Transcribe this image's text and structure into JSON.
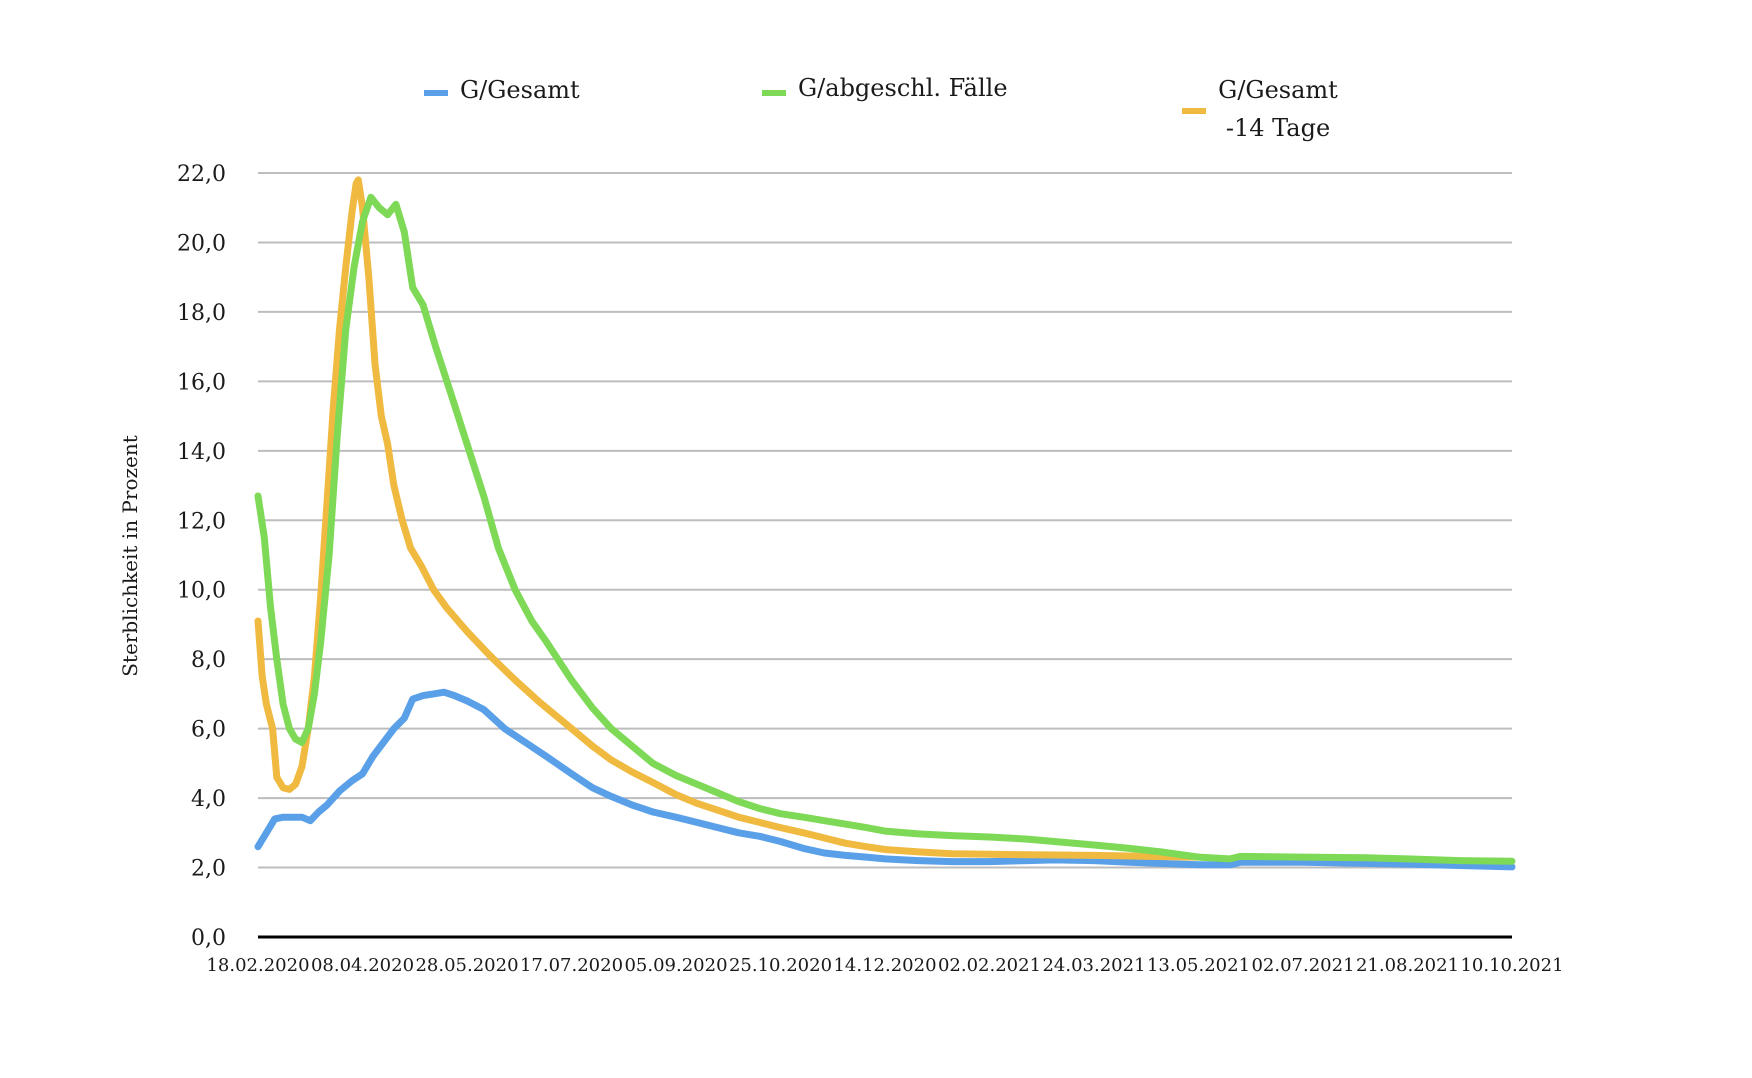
{
  "chart_data": {
    "type": "line",
    "title": "",
    "xlabel": "",
    "ylabel": "Sterblichkeit in Prozent",
    "ylim": [
      0,
      22
    ],
    "yticks": [
      "0,0",
      "2,0",
      "4,0",
      "6,0",
      "8,0",
      "10,0",
      "12,0",
      "14,0",
      "16,0",
      "18,0",
      "20,0",
      "22,0"
    ],
    "ytick_values": [
      0,
      2,
      4,
      6,
      8,
      10,
      12,
      14,
      16,
      18,
      20,
      22
    ],
    "xlim": [
      "18.02.2020",
      "10.10.2021"
    ],
    "xticks": [
      "18.02.2020",
      "08.04.2020",
      "28.05.2020",
      "17.07.2020",
      "05.09.2020",
      "25.10.2020",
      "14.12.2020",
      "02.02.2021",
      "24.03.2021",
      "13.05.2021",
      "02.07.2021",
      "21.08.2021",
      "10.10.2021"
    ],
    "grid": true,
    "legend_position": "top",
    "series": [
      {
        "name": "G/Gesamt",
        "color": "#5aa0e8",
        "points": [
          [
            "18.02.2020",
            2.6
          ],
          [
            "22.02.2020",
            3.0
          ],
          [
            "26.02.2020",
            3.4
          ],
          [
            "01.03.2020",
            3.45
          ],
          [
            "10.03.2020",
            3.45
          ],
          [
            "14.03.2020",
            3.35
          ],
          [
            "18.03.2020",
            3.6
          ],
          [
            "22.03.2020",
            3.8
          ],
          [
            "28.03.2020",
            4.2
          ],
          [
            "03.04.2020",
            4.5
          ],
          [
            "08.04.2020",
            4.7
          ],
          [
            "13.04.2020",
            5.2
          ],
          [
            "18.04.2020",
            5.6
          ],
          [
            "23.04.2020",
            6.0
          ],
          [
            "28.04.2020",
            6.3
          ],
          [
            "02.05.2020",
            6.85
          ],
          [
            "07.05.2020",
            6.95
          ],
          [
            "12.05.2020",
            7.0
          ],
          [
            "17.05.2020",
            7.05
          ],
          [
            "22.05.2020",
            6.95
          ],
          [
            "28.05.2020",
            6.8
          ],
          [
            "05.06.2020",
            6.55
          ],
          [
            "15.06.2020",
            6.0
          ],
          [
            "25.06.2020",
            5.6
          ],
          [
            "05.07.2020",
            5.2
          ],
          [
            "17.07.2020",
            4.7
          ],
          [
            "27.07.2020",
            4.3
          ],
          [
            "05.08.2020",
            4.05
          ],
          [
            "15.08.2020",
            3.8
          ],
          [
            "25.08.2020",
            3.6
          ],
          [
            "05.09.2020",
            3.45
          ],
          [
            "15.09.2020",
            3.3
          ],
          [
            "25.09.2020",
            3.15
          ],
          [
            "05.10.2020",
            3.0
          ],
          [
            "15.10.2020",
            2.9
          ],
          [
            "25.10.2020",
            2.75
          ],
          [
            "05.11.2020",
            2.55
          ],
          [
            "15.11.2020",
            2.42
          ],
          [
            "25.11.2020",
            2.35
          ],
          [
            "05.12.2020",
            2.3
          ],
          [
            "14.12.2020",
            2.25
          ],
          [
            "30.12.2020",
            2.2
          ],
          [
            "15.01.2021",
            2.17
          ],
          [
            "02.02.2021",
            2.17
          ],
          [
            "20.02.2021",
            2.2
          ],
          [
            "05.03.2021",
            2.22
          ],
          [
            "24.03.2021",
            2.2
          ],
          [
            "10.04.2021",
            2.15
          ],
          [
            "25.04.2021",
            2.12
          ],
          [
            "13.05.2021",
            2.08
          ],
          [
            "28.05.2021",
            2.08
          ],
          [
            "02.06.2021",
            2.15
          ],
          [
            "02.07.2021",
            2.15
          ],
          [
            "01.08.2021",
            2.12
          ],
          [
            "21.08.2021",
            2.1
          ],
          [
            "15.09.2021",
            2.06
          ],
          [
            "10.10.2021",
            2.02
          ]
        ]
      },
      {
        "name": "G/abgeschl. Fälle",
        "color": "#7ed957",
        "points": [
          [
            "18.02.2020",
            12.7
          ],
          [
            "21.02.2020",
            11.5
          ],
          [
            "24.02.2020",
            9.5
          ],
          [
            "27.02.2020",
            8.0
          ],
          [
            "01.03.2020",
            6.7
          ],
          [
            "04.03.2020",
            6.0
          ],
          [
            "07.03.2020",
            5.7
          ],
          [
            "10.03.2020",
            5.6
          ],
          [
            "13.03.2020",
            6.0
          ],
          [
            "16.03.2020",
            7.0
          ],
          [
            "19.03.2020",
            8.5
          ],
          [
            "23.03.2020",
            11.0
          ],
          [
            "27.03.2020",
            14.5
          ],
          [
            "31.03.2020",
            17.5
          ],
          [
            "04.04.2020",
            19.3
          ],
          [
            "08.04.2020",
            20.6
          ],
          [
            "12.04.2020",
            21.3
          ],
          [
            "16.04.2020",
            21.0
          ],
          [
            "20.04.2020",
            20.8
          ],
          [
            "24.04.2020",
            21.1
          ],
          [
            "28.04.2020",
            20.3
          ],
          [
            "02.05.2020",
            18.7
          ],
          [
            "07.05.2020",
            18.2
          ],
          [
            "13.05.2020",
            17.0
          ],
          [
            "20.05.2020",
            15.7
          ],
          [
            "28.05.2020",
            14.2
          ],
          [
            "05.06.2020",
            12.7
          ],
          [
            "12.06.2020",
            11.2
          ],
          [
            "20.06.2020",
            10.0
          ],
          [
            "28.06.2020",
            9.1
          ],
          [
            "05.07.2020",
            8.5
          ],
          [
            "17.07.2020",
            7.4
          ],
          [
            "27.07.2020",
            6.6
          ],
          [
            "05.08.2020",
            6.0
          ],
          [
            "15.08.2020",
            5.5
          ],
          [
            "25.08.2020",
            5.0
          ],
          [
            "05.09.2020",
            4.65
          ],
          [
            "15.09.2020",
            4.4
          ],
          [
            "25.09.2020",
            4.15
          ],
          [
            "05.10.2020",
            3.9
          ],
          [
            "15.10.2020",
            3.7
          ],
          [
            "25.10.2020",
            3.55
          ],
          [
            "05.11.2020",
            3.45
          ],
          [
            "15.11.2020",
            3.35
          ],
          [
            "25.11.2020",
            3.25
          ],
          [
            "05.12.2020",
            3.15
          ],
          [
            "14.12.2020",
            3.05
          ],
          [
            "30.12.2020",
            2.97
          ],
          [
            "15.01.2021",
            2.92
          ],
          [
            "02.02.2021",
            2.88
          ],
          [
            "20.02.2021",
            2.82
          ],
          [
            "05.03.2021",
            2.75
          ],
          [
            "24.03.2021",
            2.65
          ],
          [
            "10.04.2021",
            2.55
          ],
          [
            "25.04.2021",
            2.45
          ],
          [
            "13.05.2021",
            2.3
          ],
          [
            "28.05.2021",
            2.25
          ],
          [
            "02.06.2021",
            2.32
          ],
          [
            "02.07.2021",
            2.3
          ],
          [
            "01.08.2021",
            2.28
          ],
          [
            "21.08.2021",
            2.25
          ],
          [
            "15.09.2021",
            2.2
          ],
          [
            "10.10.2021",
            2.18
          ]
        ]
      },
      {
        "name": "G/Gesamt\n-14 Tage",
        "name_lines": [
          "G/Gesamt",
          "-14 Tage"
        ],
        "color": "#f0b940",
        "points": [
          [
            "18.02.2020",
            9.1
          ],
          [
            "20.02.2020",
            7.5
          ],
          [
            "22.02.2020",
            6.7
          ],
          [
            "25.02.2020",
            6.0
          ],
          [
            "27.02.2020",
            4.6
          ],
          [
            "01.03.2020",
            4.3
          ],
          [
            "04.03.2020",
            4.25
          ],
          [
            "07.03.2020",
            4.4
          ],
          [
            "10.03.2020",
            4.9
          ],
          [
            "13.03.2020",
            6.0
          ],
          [
            "16.03.2020",
            7.5
          ],
          [
            "19.03.2020",
            9.8
          ],
          [
            "22.03.2020",
            12.5
          ],
          [
            "25.03.2020",
            15.2
          ],
          [
            "28.03.2020",
            17.5
          ],
          [
            "31.03.2020",
            19.3
          ],
          [
            "03.04.2020",
            20.9
          ],
          [
            "05.04.2020",
            21.7
          ],
          [
            "06.04.2020",
            21.8
          ],
          [
            "08.04.2020",
            21.0
          ],
          [
            "11.04.2020",
            19.0
          ],
          [
            "14.04.2020",
            16.5
          ],
          [
            "17.04.2020",
            15.0
          ],
          [
            "20.04.2020",
            14.2
          ],
          [
            "23.04.2020",
            13.0
          ],
          [
            "27.04.2020",
            12.0
          ],
          [
            "01.05.2020",
            11.2
          ],
          [
            "06.05.2020",
            10.7
          ],
          [
            "12.05.2020",
            10.0
          ],
          [
            "18.05.2020",
            9.5
          ],
          [
            "28.05.2020",
            8.8
          ],
          [
            "08.06.2020",
            8.1
          ],
          [
            "20.06.2020",
            7.4
          ],
          [
            "01.07.2020",
            6.8
          ],
          [
            "17.07.2020",
            6.0
          ],
          [
            "27.07.2020",
            5.5
          ],
          [
            "05.08.2020",
            5.1
          ],
          [
            "15.08.2020",
            4.75
          ],
          [
            "25.08.2020",
            4.45
          ],
          [
            "05.09.2020",
            4.1
          ],
          [
            "15.09.2020",
            3.85
          ],
          [
            "25.09.2020",
            3.65
          ],
          [
            "05.10.2020",
            3.45
          ],
          [
            "15.10.2020",
            3.3
          ],
          [
            "25.10.2020",
            3.15
          ],
          [
            "05.11.2020",
            3.0
          ],
          [
            "15.11.2020",
            2.85
          ],
          [
            "25.11.2020",
            2.7
          ],
          [
            "05.12.2020",
            2.6
          ],
          [
            "14.12.2020",
            2.52
          ],
          [
            "30.12.2020",
            2.45
          ],
          [
            "15.01.2021",
            2.4
          ],
          [
            "02.02.2021",
            2.38
          ],
          [
            "24.03.2021",
            2.35
          ],
          [
            "13.05.2021",
            2.3
          ]
        ]
      }
    ]
  }
}
